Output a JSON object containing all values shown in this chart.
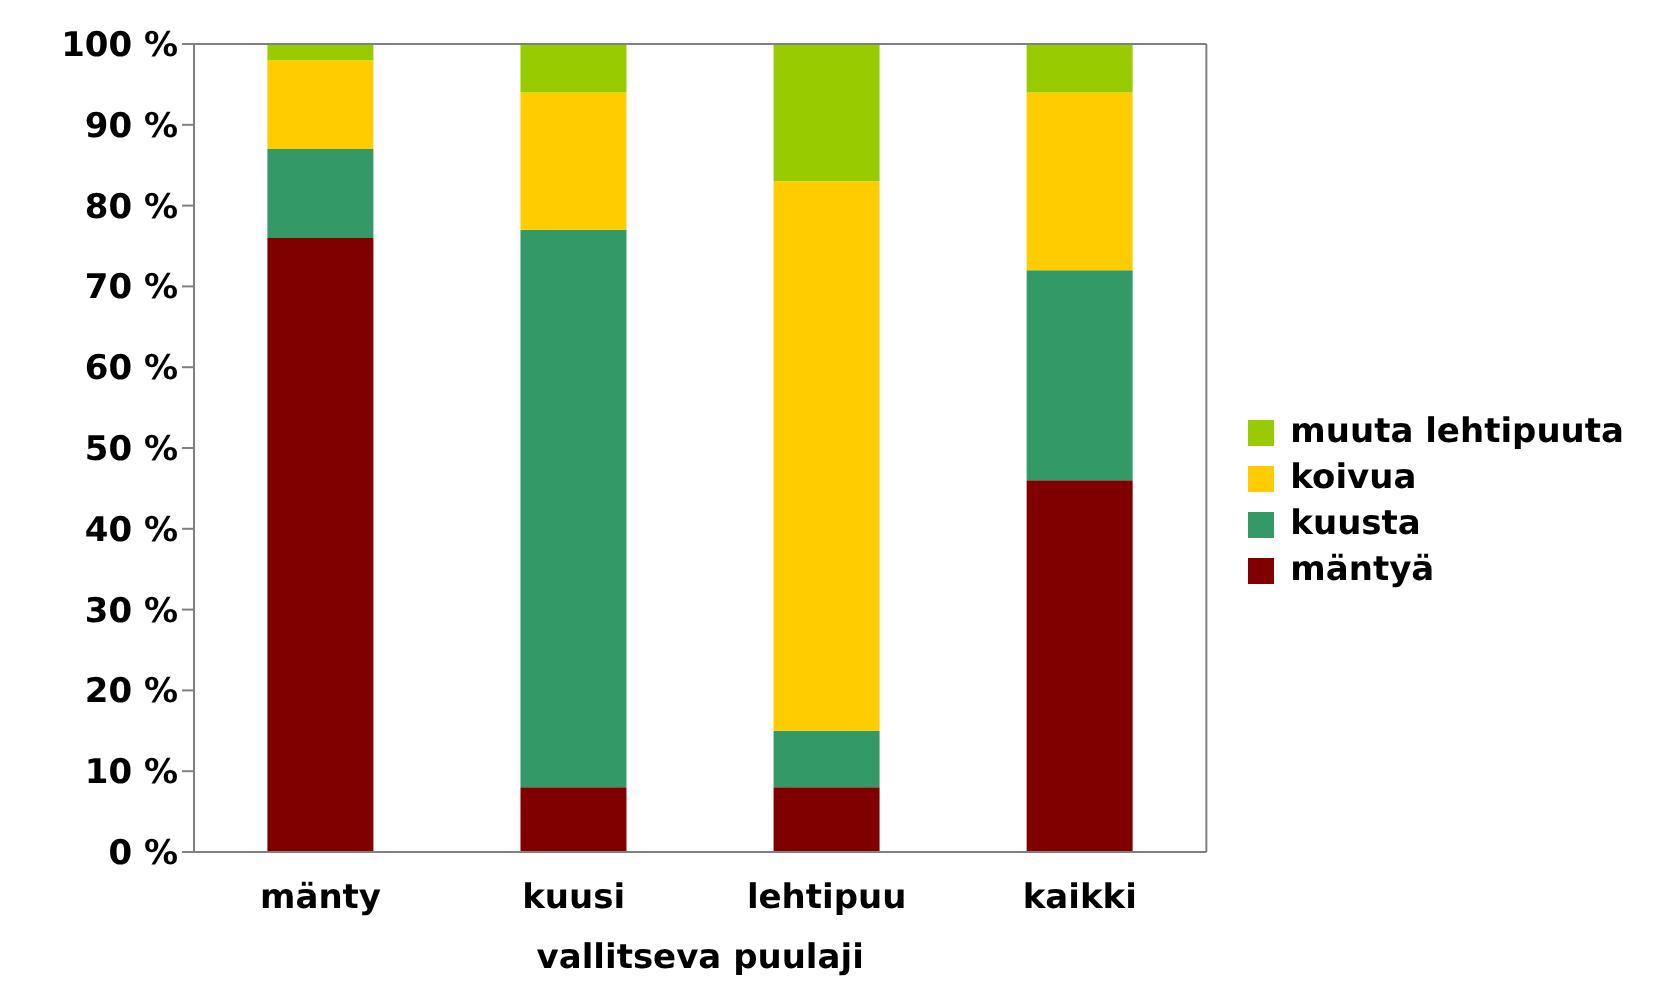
{
  "chart_data": {
    "type": "bar",
    "stacked": true,
    "xlabel": "vallitseva puulaji",
    "categories": [
      "mänty",
      "kuusi",
      "lehtipuu",
      "kaikki"
    ],
    "series": [
      {
        "name": "mäntyä",
        "color": "#800000",
        "values": [
          76,
          8,
          8,
          46
        ]
      },
      {
        "name": "kuusta",
        "color": "#339966",
        "values": [
          11,
          69,
          7,
          26
        ]
      },
      {
        "name": "koivua",
        "color": "#ffcc00",
        "values": [
          11,
          17,
          68,
          22
        ]
      },
      {
        "name": "muuta lehtipuuta",
        "color": "#99cc00",
        "values": [
          2,
          6,
          17,
          6
        ]
      }
    ],
    "ylim": [
      0,
      100
    ],
    "yticks": [
      {
        "value": 0,
        "label": "0 %"
      },
      {
        "value": 10,
        "label": "10 %"
      },
      {
        "value": 20,
        "label": "20 %"
      },
      {
        "value": 30,
        "label": "30 %"
      },
      {
        "value": 40,
        "label": "40 %"
      },
      {
        "value": 50,
        "label": "50 %"
      },
      {
        "value": 60,
        "label": "60 %"
      },
      {
        "value": 70,
        "label": "70 %"
      },
      {
        "value": 80,
        "label": "80 %"
      },
      {
        "value": 90,
        "label": "90 %"
      },
      {
        "value": 100,
        "label": "100 %"
      }
    ],
    "grid": false,
    "legend": "right"
  }
}
